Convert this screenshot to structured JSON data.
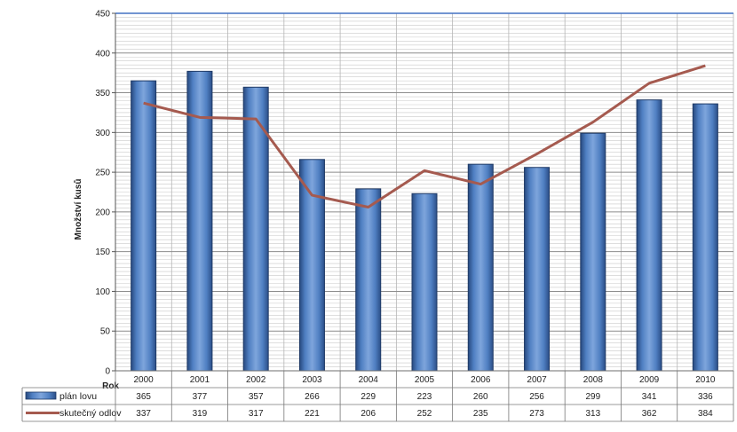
{
  "chart_data": {
    "type": "bar",
    "categories": [
      "2000",
      "2001",
      "2002",
      "2003",
      "2004",
      "2005",
      "2006",
      "2007",
      "2008",
      "2009",
      "2010"
    ],
    "series": [
      {
        "name": "plán lovu",
        "kind": "bar",
        "color": "#4f7fc2",
        "values": [
          365,
          377,
          357,
          266,
          229,
          223,
          260,
          256,
          299,
          341,
          336
        ]
      },
      {
        "name": "skutečný odlov",
        "kind": "line",
        "color": "#a55a4f",
        "values": [
          337,
          319,
          317,
          221,
          206,
          252,
          235,
          273,
          313,
          362,
          384
        ]
      }
    ],
    "ylabel": "Množství kusů",
    "xlabel": "Rok",
    "ylim": [
      0,
      450
    ],
    "yticks": [
      0,
      50,
      100,
      150,
      200,
      250,
      300,
      350,
      400,
      450
    ],
    "grid": true,
    "data_table": true
  }
}
